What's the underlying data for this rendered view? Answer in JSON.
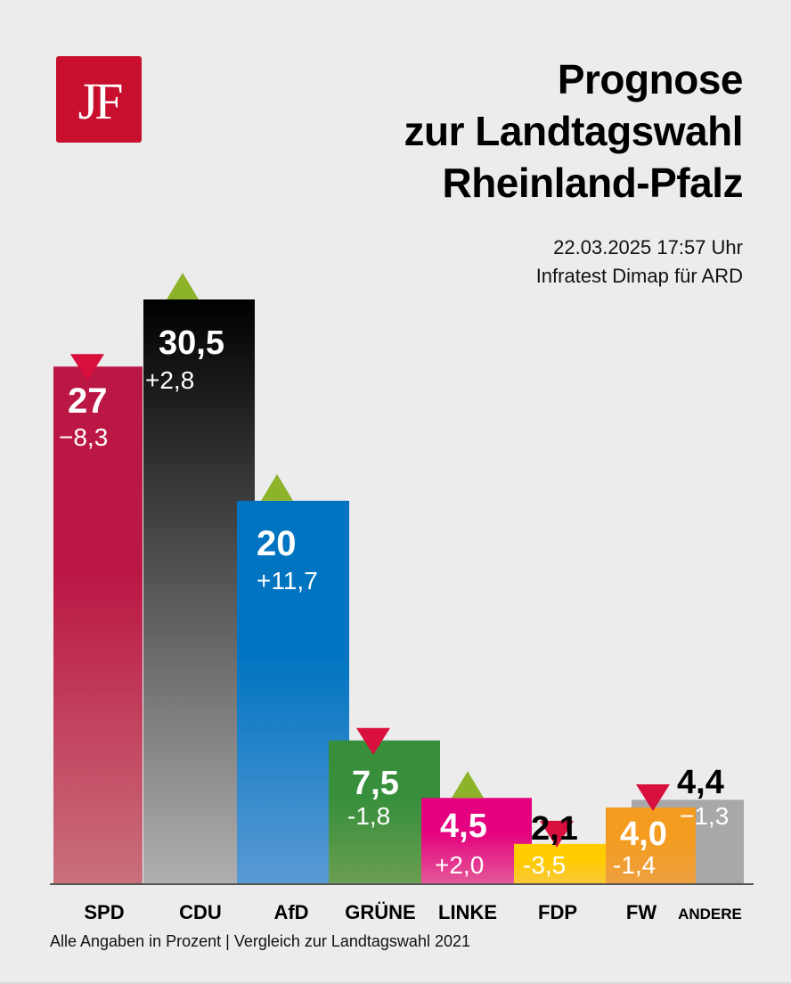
{
  "logo": {
    "text": "JF",
    "color": "#c8102e"
  },
  "title": {
    "lines": [
      "Prognose",
      "zur Landtagswahl",
      "Rheinland-Pfalz"
    ]
  },
  "meta": {
    "datetime": "22.03.2025 17:57 Uhr",
    "source": "Infratest Dimap für ARD"
  },
  "footer": {
    "note": "Alle Angaben in Prozent | Vergleich zur Landtagswahl 2021"
  },
  "chart_data": {
    "type": "bar",
    "title": "Prognose zur Landtagswahl Rheinland-Pfalz",
    "xlabel": "",
    "ylabel": "Prozent",
    "ylim": [
      0,
      30.5
    ],
    "grid": false,
    "legend": "none",
    "categories": [
      "SPD",
      "CDU",
      "AfD",
      "GRÜNE",
      "LINKE",
      "FDP",
      "FW",
      "ANDERE"
    ],
    "values": [
      27,
      30.5,
      20,
      7.5,
      4.5,
      2.1,
      4.0,
      4.4
    ],
    "value_labels": [
      "27",
      "30,5",
      "20",
      "7,5",
      "4,5",
      "2,1",
      "4,0",
      "4,4"
    ],
    "changes": [
      -8.3,
      2.8,
      11.7,
      -1.8,
      2.0,
      -3.5,
      -1.4,
      -1.3
    ],
    "change_labels": [
      "−8,3",
      "+2,8",
      "+11,7",
      "-1,8",
      "+2,0",
      "-3,5",
      "-1,4",
      "−1,3"
    ],
    "trend": [
      "down",
      "up",
      "up",
      "down",
      "up",
      "down",
      "down",
      "none"
    ],
    "colors": [
      "#bb1744",
      "#0a0a0a",
      "#0074c1",
      "#378f3c",
      "#e4007e",
      "#ffcc00",
      "#f39c1f",
      "#a8a8a8"
    ],
    "trend_colors": {
      "up": "#8db32b",
      "down": "#d90f3d"
    }
  }
}
